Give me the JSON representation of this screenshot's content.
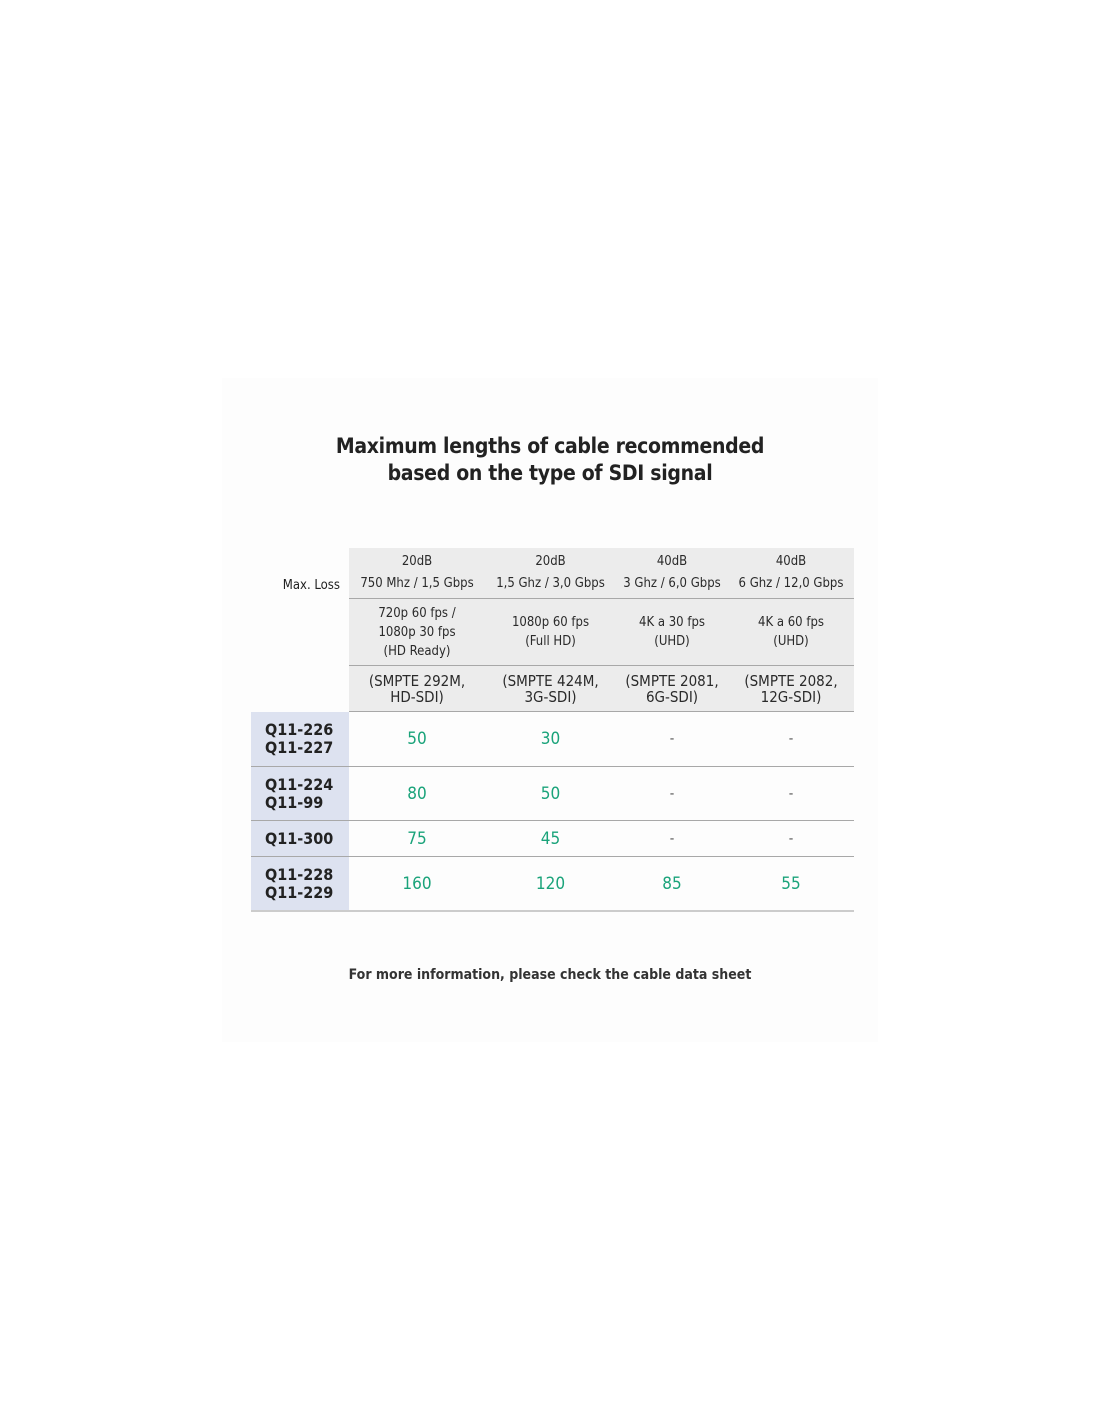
{
  "title": {
    "line1": "Maximum lengths of cable recommended",
    "line2": "based on the type of SDI signal"
  },
  "table": {
    "row_header_label": "Max. Loss",
    "columns": [
      {
        "loss": "20dB",
        "bandwidth": "750 Mhz / 1,5 Gbps",
        "format": [
          "720p 60 fps /",
          "1080p 30 fps",
          "(HD Ready)"
        ],
        "standard": [
          "(SMPTE 292M,",
          "HD-SDI)"
        ]
      },
      {
        "loss": "20dB",
        "bandwidth": "1,5 Ghz / 3,0 Gbps",
        "format": [
          "1080p 60 fps",
          "(Full HD)"
        ],
        "standard": [
          "(SMPTE 424M,",
          "3G-SDI)"
        ]
      },
      {
        "loss": "40dB",
        "bandwidth": "3 Ghz / 6,0 Gbps",
        "format": [
          "4K a 30 fps",
          "(UHD)"
        ],
        "standard": [
          "(SMPTE 2081,",
          "6G-SDI)"
        ]
      },
      {
        "loss": "40dB",
        "bandwidth": "6 Ghz / 12,0 Gbps",
        "format": [
          "4K a 60 fps",
          "(UHD)"
        ],
        "standard": [
          "(SMPTE 2082,",
          "12G-SDI)"
        ]
      }
    ],
    "rows": [
      {
        "models": [
          "Q11-226",
          "Q11-227"
        ],
        "values": [
          "50",
          "30",
          "-",
          "-"
        ]
      },
      {
        "models": [
          "Q11-224",
          "Q11-99"
        ],
        "values": [
          "80",
          "50",
          "-",
          "-"
        ]
      },
      {
        "models": [
          "Q11-300"
        ],
        "values": [
          "75",
          "45",
          "-",
          "-"
        ]
      },
      {
        "models": [
          "Q11-228",
          "Q11-229"
        ],
        "values": [
          "160",
          "120",
          "85",
          "55"
        ]
      }
    ]
  },
  "footer": "For more information, please check the cable data sheet",
  "colors": {
    "value_green": "#1aa37a",
    "header_gray": "#ececec",
    "model_column_blue": "#dde2f0"
  }
}
